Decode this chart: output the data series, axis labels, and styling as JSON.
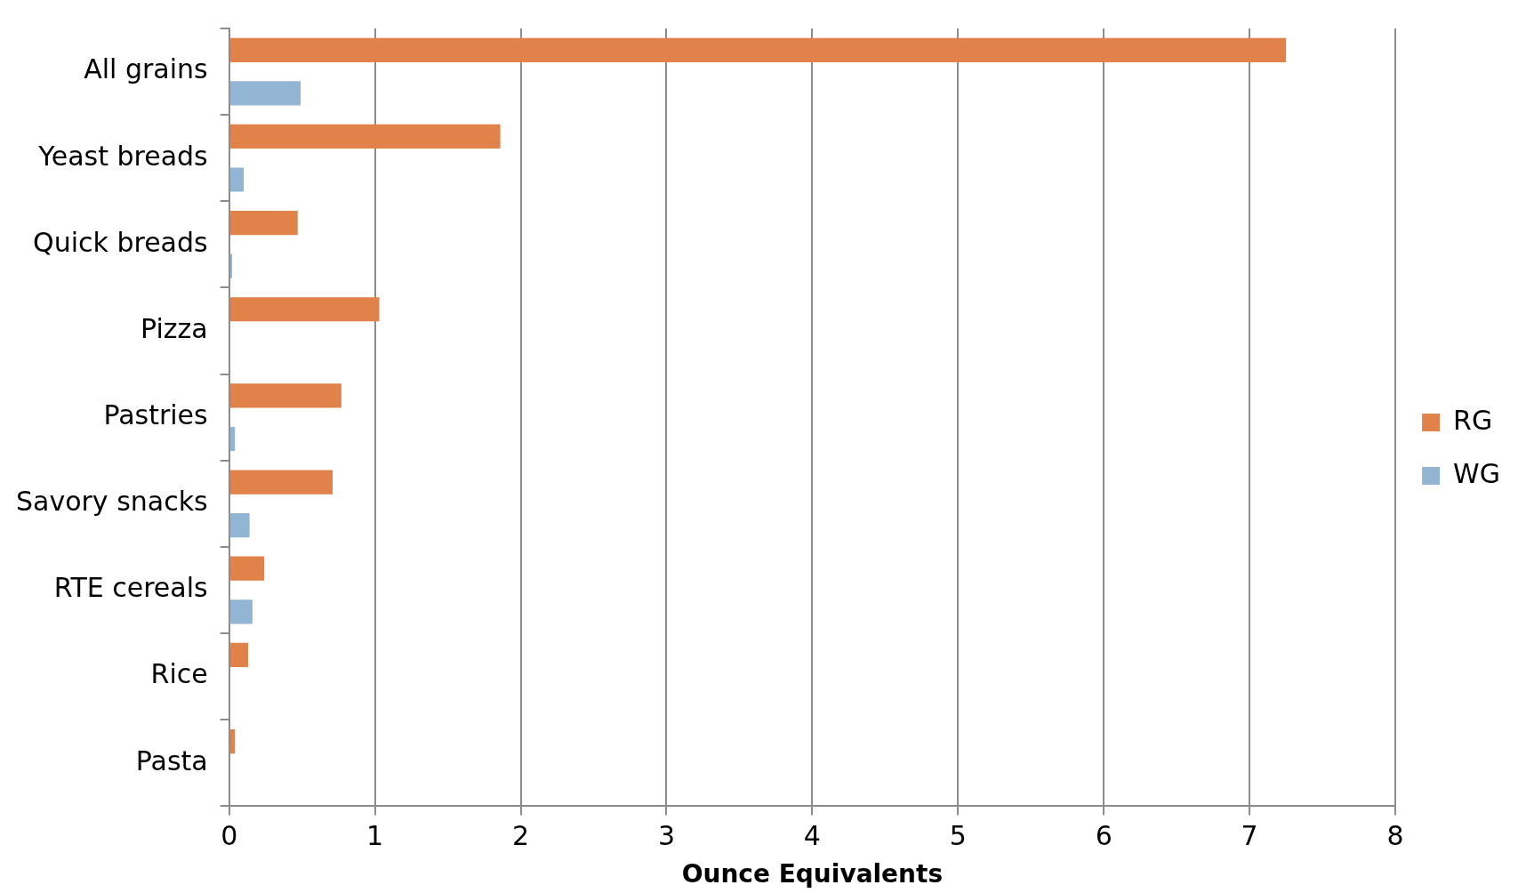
{
  "chart_data": {
    "type": "bar",
    "orientation": "horizontal",
    "xlabel": "Ounce Equivalents",
    "categories": [
      "All grains",
      "Yeast breads",
      "Quick breads",
      "Pizza",
      "Pastries",
      "Savory snacks",
      "RTE cereals",
      "Rice",
      "Pasta"
    ],
    "series": [
      {
        "name": "RG",
        "color": "#e0824a",
        "values": [
          7.25,
          1.86,
          0.47,
          1.03,
          0.77,
          0.71,
          0.24,
          0.13,
          0.04
        ]
      },
      {
        "name": "WG",
        "color": "#93b5d4",
        "values": [
          0.49,
          0.1,
          0.02,
          0,
          0.04,
          0.14,
          0.16,
          0,
          0
        ]
      }
    ],
    "xlim": [
      0,
      8
    ],
    "xticks": [
      0,
      1,
      2,
      3,
      4,
      5,
      6,
      7,
      8
    ],
    "grid": "x",
    "legend": "right"
  }
}
